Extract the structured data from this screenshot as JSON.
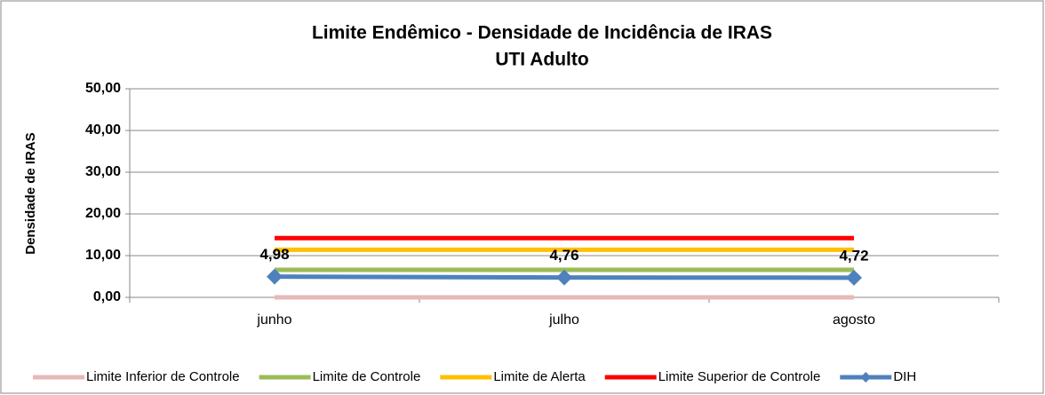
{
  "chart_data": {
    "type": "line",
    "title": "Limite Endêmico -  Densidade de Incidência de IRAS",
    "subtitle": "UTI Adulto",
    "y_axis_label": "Densidade de IRAS",
    "categories": [
      "junho",
      "julho",
      "agosto"
    ],
    "series": [
      {
        "name": "Limite Inferior de Controle",
        "color": "#e6b9b8",
        "values": [
          0,
          0,
          0
        ]
      },
      {
        "name": "Limite de Controle",
        "color": "#9bbb59",
        "values": [
          6.6,
          6.6,
          6.6
        ]
      },
      {
        "name": "Limite de Alerta",
        "color": "#ffc000",
        "values": [
          11.4,
          11.4,
          11.4
        ]
      },
      {
        "name": "Limite Superior de Controle",
        "color": "#ff0000",
        "values": [
          14.2,
          14.2,
          14.2
        ]
      },
      {
        "name": "DIH",
        "color": "#4f81bd",
        "values": [
          4.98,
          4.76,
          4.72
        ],
        "value_labels": [
          "4,98",
          "4,76",
          "4,72"
        ],
        "marker": "diamond"
      }
    ],
    "ylim": [
      0,
      50
    ],
    "yticks": [
      {
        "value": 0,
        "label": "0,00"
      },
      {
        "value": 10,
        "label": "10,00"
      },
      {
        "value": 20,
        "label": "20,00"
      },
      {
        "value": 30,
        "label": "30,00"
      },
      {
        "value": 40,
        "label": "40,00"
      },
      {
        "value": 50,
        "label": "50,00"
      }
    ],
    "grid": true,
    "legend": "bottom"
  }
}
